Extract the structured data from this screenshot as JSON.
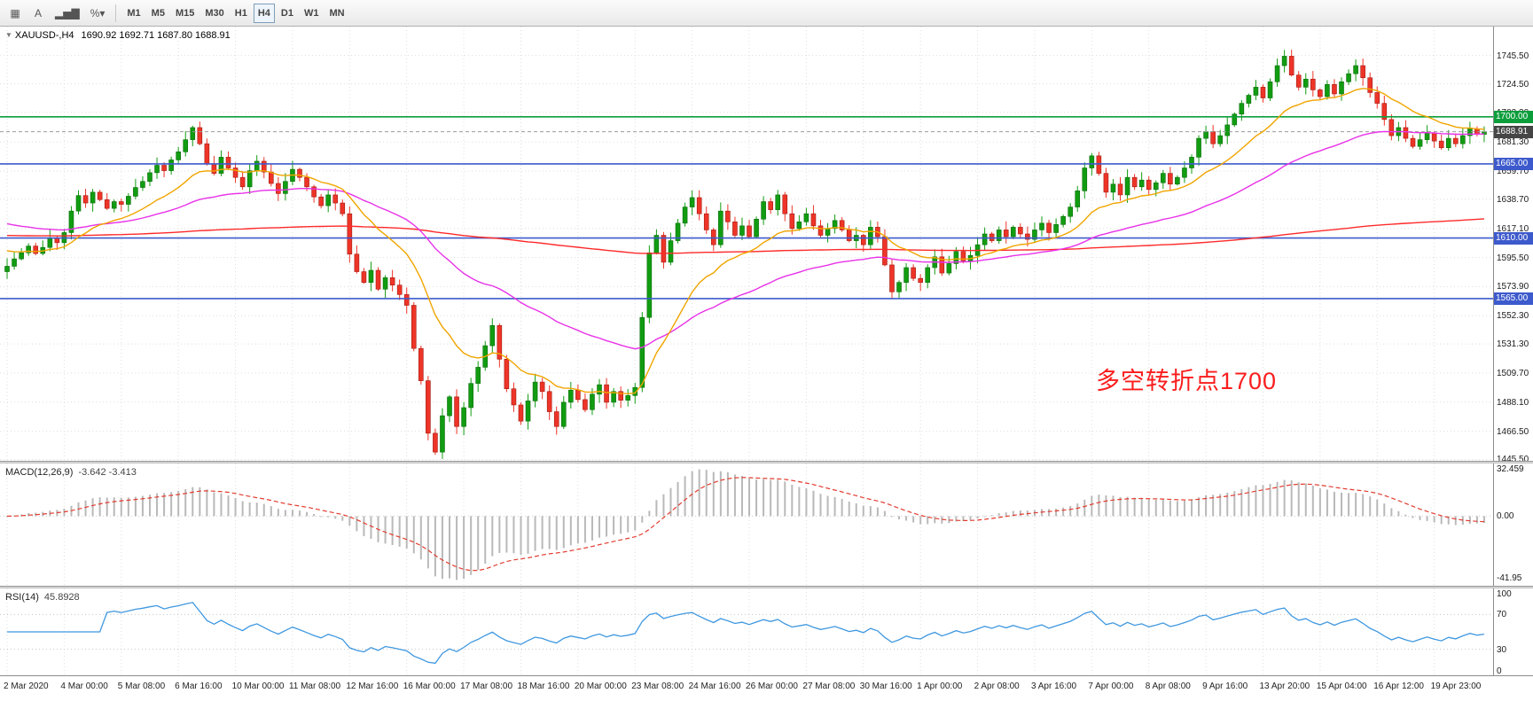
{
  "toolbar": {
    "icons": [
      {
        "name": "indicator-grid-icon",
        "glyph": "▦"
      },
      {
        "name": "text-tool-icon",
        "glyph": "A"
      },
      {
        "name": "chart-type-icon",
        "glyph": "▂▅▇"
      },
      {
        "name": "zoom-percent-dropdown",
        "glyph": "%▾"
      }
    ],
    "timeframes": [
      "M1",
      "M5",
      "M15",
      "M30",
      "H1",
      "H4",
      "D1",
      "W1",
      "MN"
    ],
    "active": "H4"
  },
  "chart": {
    "header": {
      "marker": "▼",
      "symbol": "XAUUSD-,H4",
      "ohlc": "1690.92 1692.71 1687.80 1688.91"
    },
    "annotation": {
      "text": "多空转折点1700",
      "color": "#fb1d1d"
    },
    "price_ticks": [
      "1745.50",
      "1724.50",
      "1703.30",
      "1681.30",
      "1659.70",
      "1638.70",
      "1617.10",
      "1595.50",
      "1573.90",
      "1552.30",
      "1531.30",
      "1509.70",
      "1488.10",
      "1466.50",
      "1445.50"
    ],
    "levels": [
      {
        "value": 1700.0,
        "label": "1700.00",
        "line_color": "#0d9e3c",
        "label_bg": "#0d9e3c"
      },
      {
        "value": 1665.0,
        "label": "1665.00",
        "line_color": "#3d5acc",
        "label_bg": "#3d5acc"
      },
      {
        "value": 1610.0,
        "label": "1610.00",
        "line_color": "#3d5acc",
        "label_bg": "#3d5acc"
      },
      {
        "value": 1565.0,
        "label": "1565.00",
        "line_color": "#3d5acc",
        "label_bg": "#3d5acc"
      }
    ],
    "bid": {
      "value": 1688.91,
      "label": "1688.91",
      "label_bg": "#454545",
      "line_color": "#9b9b9b"
    }
  },
  "panels": {
    "macd": {
      "label": "MACD(12,26,9)",
      "values": "-3.642 -3.413",
      "ticks": [
        "32.459",
        "0.00",
        "-41.95"
      ]
    },
    "rsi": {
      "label": "RSI(14)",
      "values": "45.8928",
      "ticks": [
        "100",
        "70",
        "30",
        "0"
      ],
      "levels": [
        70,
        30
      ]
    }
  },
  "chart_data": {
    "type": "candlestick",
    "symbol": "XAUUSD",
    "timeframe": "H4",
    "title": "XAUUSD-,H4",
    "price_range": [
      1444.5,
      1767
    ],
    "bars_per_label": 8,
    "first_open": 1585,
    "x_labels": [
      "2 Mar 2020",
      "4 Mar 00:00",
      "5 Mar 08:00",
      "6 Mar 16:00",
      "10 Mar 00:00",
      "11 Mar 08:00",
      "12 Mar 16:00",
      "16 Mar 00:00",
      "17 Mar 08:00",
      "18 Mar 16:00",
      "20 Mar 00:00",
      "23 Mar 08:00",
      "24 Mar 16:00",
      "26 Mar 00:00",
      "27 Mar 08:00",
      "30 Mar 16:00",
      "1 Apr 00:00",
      "2 Apr 08:00",
      "3 Apr 16:00",
      "7 Apr 00:00",
      "8 Apr 08:00",
      "9 Apr 16:00",
      "13 Apr 20:00",
      "15 Apr 04:00",
      "16 Apr 12:00",
      "19 Apr 23:00"
    ],
    "closes": [
      1589,
      1594.5,
      1599,
      1604,
      1598.5,
      1603,
      1610,
      1606.5,
      1614,
      1630,
      1641.5,
      1636,
      1644,
      1638.5,
      1632,
      1637,
      1635,
      1641,
      1647.5,
      1652,
      1658.5,
      1664,
      1660,
      1668,
      1674,
      1683,
      1692,
      1680,
      1665,
      1658,
      1670,
      1662,
      1655,
      1648,
      1660,
      1667,
      1659,
      1650.5,
      1643,
      1652,
      1661,
      1655,
      1648,
      1640.5,
      1634,
      1642,
      1636,
      1628,
      1598,
      1585,
      1577,
      1586,
      1572,
      1580.5,
      1575,
      1568,
      1560,
      1528,
      1504,
      1465,
      1451,
      1478,
      1492,
      1470,
      1484,
      1502,
      1514,
      1530,
      1545,
      1520,
      1498,
      1486,
      1474,
      1489,
      1503,
      1496,
      1481,
      1470,
      1488,
      1497,
      1490,
      1482.5,
      1494,
      1501,
      1488,
      1496,
      1489.5,
      1493,
      1499,
      1551,
      1599,
      1612,
      1592,
      1608,
      1621,
      1633,
      1640,
      1628,
      1616,
      1605,
      1630,
      1622,
      1612,
      1619,
      1611,
      1624,
      1637,
      1631,
      1642,
      1628,
      1617,
      1622,
      1628,
      1619,
      1612,
      1617,
      1623,
      1616,
      1608,
      1612,
      1605,
      1618,
      1611,
      1590,
      1570,
      1577,
      1588,
      1580,
      1577,
      1588,
      1596,
      1584,
      1591,
      1600,
      1593,
      1597,
      1605,
      1613,
      1608,
      1616,
      1611,
      1618,
      1613,
      1609,
      1616,
      1621,
      1614,
      1620,
      1626,
      1633,
      1645,
      1662,
      1671,
      1658,
      1644,
      1650,
      1642,
      1655,
      1648,
      1653,
      1646,
      1651,
      1658,
      1650,
      1655,
      1662,
      1670,
      1684,
      1689,
      1680,
      1686,
      1694,
      1702,
      1710,
      1716,
      1722,
      1714,
      1726,
      1738,
      1745,
      1731,
      1722,
      1728,
      1720,
      1715,
      1724,
      1717,
      1726,
      1732,
      1738,
      1729,
      1718,
      1710,
      1698,
      1686,
      1692,
      1684,
      1678,
      1683,
      1688,
      1682,
      1677,
      1684,
      1680,
      1686,
      1691,
      1687,
      1688.9
    ],
    "moving_averages": [
      {
        "name": "ma-slow",
        "period": 400,
        "seed": 1612,
        "color": "#ff2a2a"
      },
      {
        "name": "ma-medium",
        "period": 48,
        "seed": 1622,
        "color": "#e832e8"
      },
      {
        "name": "ma-fast",
        "period": 16,
        "seed": 1602,
        "color": "#f0a500"
      }
    ],
    "macd": {
      "params": [
        12,
        26,
        9
      ]
    },
    "rsi": {
      "period": 14
    },
    "colors": {
      "up": "#119c11",
      "up_border": "#0a6e0a",
      "down": "#ee3428",
      "down_border": "#a31b10",
      "macd_hist": "#b9b9b9",
      "macd_signal": "#e23b2e",
      "rsi": "#3f98e0",
      "grid": "#dedede"
    }
  }
}
